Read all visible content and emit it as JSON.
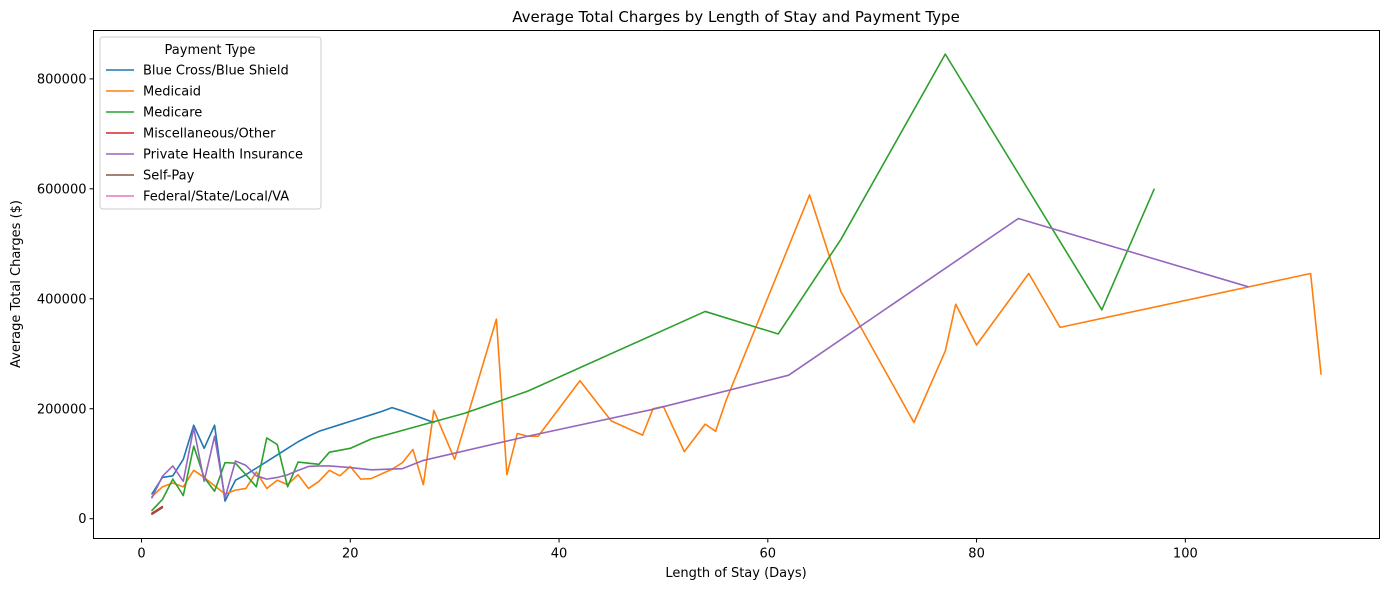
{
  "chart_data": {
    "type": "line",
    "title": "Average Total Charges by Length of Stay and Payment Type",
    "xlabel": "Length of Stay (Days)",
    "ylabel": "Average Total Charges ($)",
    "xlim": [
      -4.6,
      118.6
    ],
    "ylim": [
      -36000,
      888000
    ],
    "xticks": [
      0,
      20,
      40,
      60,
      80,
      100
    ],
    "yticks": [
      0,
      200000,
      400000,
      600000,
      800000
    ],
    "xtick_labels": [
      "0",
      "20",
      "40",
      "60",
      "80",
      "100"
    ],
    "ytick_labels": [
      "0",
      "200000",
      "400000",
      "600000",
      "800000"
    ],
    "grid": false,
    "legend": {
      "title": "Payment Type",
      "position": "top-left"
    },
    "series": [
      {
        "name": "Blue Cross/Blue Shield",
        "color": "#1f77b4",
        "x": [
          1,
          2,
          3,
          4,
          5,
          6,
          7,
          8,
          9,
          10,
          11,
          12,
          13,
          14,
          15,
          16,
          17,
          18,
          19,
          20,
          21,
          22,
          23,
          24,
          25,
          26,
          27,
          28
        ],
        "y": [
          45000,
          75000,
          78000,
          108000,
          170000,
          128000,
          170000,
          32000,
          70000,
          80000,
          92000,
          104000,
          116000,
          128000,
          140000,
          150000,
          159000,
          165000,
          171000,
          177000,
          183000,
          189000,
          195000,
          202000,
          196000,
          189000,
          182000,
          175000
        ]
      },
      {
        "name": "Medicaid",
        "color": "#ff7f0e",
        "x": [
          1,
          2,
          3,
          4,
          5,
          6,
          7,
          8,
          9,
          10,
          11,
          12,
          13,
          14,
          15,
          16,
          17,
          18,
          19,
          20,
          21,
          22,
          24,
          25,
          26,
          27,
          28,
          30,
          34,
          35,
          36,
          37,
          38,
          42,
          45,
          48,
          49,
          50,
          52,
          54,
          55,
          56,
          64,
          67,
          74,
          77,
          78,
          80,
          85,
          88,
          112,
          113
        ],
        "y": [
          40000,
          58000,
          65000,
          58000,
          88000,
          75000,
          60000,
          45000,
          52000,
          55000,
          85000,
          55000,
          70000,
          62000,
          80000,
          55000,
          68000,
          88000,
          78000,
          95000,
          72000,
          73000,
          90000,
          102000,
          126000,
          62000,
          197000,
          108000,
          363000,
          80000,
          155000,
          150000,
          150000,
          251000,
          178000,
          152000,
          200000,
          204000,
          122000,
          172000,
          159000,
          215000,
          589000,
          413000,
          175000,
          305000,
          390000,
          316000,
          446000,
          348000,
          446000,
          263000
        ]
      },
      {
        "name": "Medicare",
        "color": "#2ca02c",
        "x": [
          1,
          2,
          3,
          4,
          5,
          6,
          7,
          8,
          9,
          10,
          11,
          12,
          13,
          14,
          15,
          16,
          17,
          18,
          20,
          22,
          31,
          37,
          54,
          61,
          67,
          77,
          92,
          97
        ],
        "y": [
          15000,
          35000,
          72000,
          42000,
          132000,
          75000,
          50000,
          102000,
          101000,
          80000,
          58000,
          147000,
          135000,
          58000,
          103000,
          101000,
          99000,
          121000,
          128000,
          145000,
          192000,
          232000,
          377000,
          336000,
          508000,
          845000,
          380000,
          599000
        ]
      },
      {
        "name": "Miscellaneous/Other",
        "color": "#d62728",
        "x": [
          1,
          2
        ],
        "y": [
          10000,
          22000
        ]
      },
      {
        "name": "Private Health Insurance",
        "color": "#9467bd",
        "x": [
          1,
          2,
          3,
          4,
          5,
          6,
          7,
          8,
          9,
          10,
          11,
          12,
          13,
          14,
          15,
          16,
          17,
          18,
          20,
          22,
          25,
          27,
          37,
          49,
          62,
          84,
          106
        ],
        "y": [
          38000,
          77000,
          96000,
          68000,
          165000,
          68000,
          150000,
          38000,
          105000,
          97000,
          78000,
          72000,
          75000,
          80000,
          88000,
          95000,
          96000,
          96000,
          93000,
          89000,
          91000,
          106000,
          150000,
          199000,
          261000,
          546000,
          422000
        ]
      },
      {
        "name": "Self-Pay",
        "color": "#8c564b",
        "x": [
          1,
          2
        ],
        "y": [
          8000,
          20000
        ]
      },
      {
        "name": "Federal/State/Local/VA",
        "color": "#e377c2",
        "x": [
          1
        ],
        "y": [
          40000
        ]
      }
    ]
  }
}
